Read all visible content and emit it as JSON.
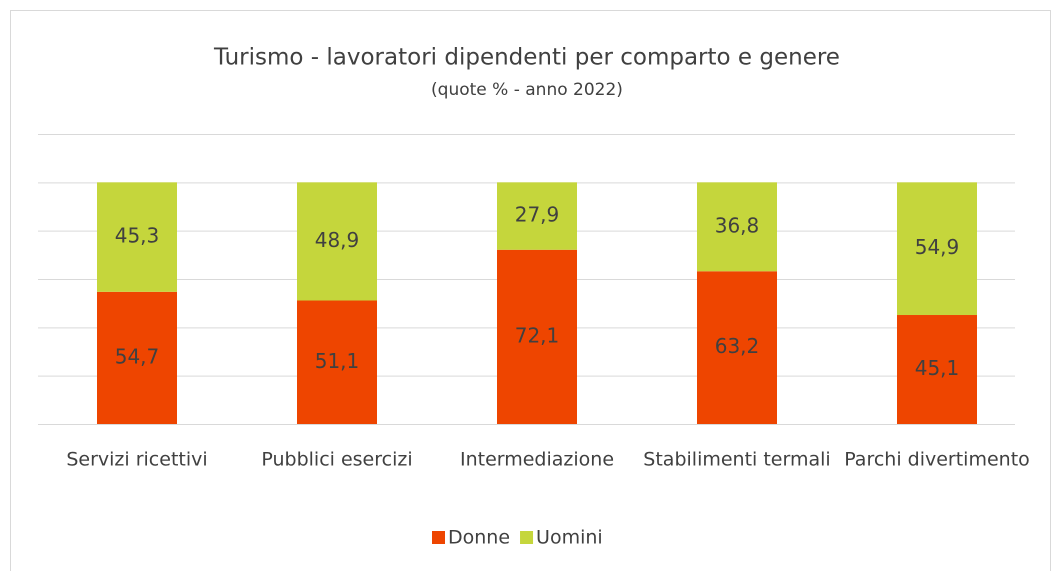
{
  "chart_data": {
    "type": "stacked_bar",
    "title": "Turismo - lavoratori dipendenti per comparto e genere",
    "subtitle": "(quote % - anno 2022)",
    "categories": [
      "Servizi ricettivi",
      "Pubblici esercizi",
      "Intermediazione",
      "Stabilimenti termali",
      "Parchi divertimento"
    ],
    "series": [
      {
        "name": "Donne",
        "color": "#ee4500",
        "values": [
          54.7,
          51.1,
          72.1,
          63.2,
          45.1
        ],
        "value_labels": [
          "54,7",
          "51,1",
          "72,1",
          "63,2",
          "45,1"
        ]
      },
      {
        "name": "Uomini",
        "color": "#c5d63c",
        "values": [
          45.3,
          48.9,
          27.9,
          36.8,
          54.9
        ],
        "value_labels": [
          "45,3",
          "48,9",
          "27,9",
          "36,8",
          "54,9"
        ]
      }
    ],
    "ylim": [
      0,
      120
    ],
    "yticks": [
      0,
      20,
      40,
      60,
      80,
      100,
      120
    ],
    "grid": true,
    "legend": "bottom"
  }
}
